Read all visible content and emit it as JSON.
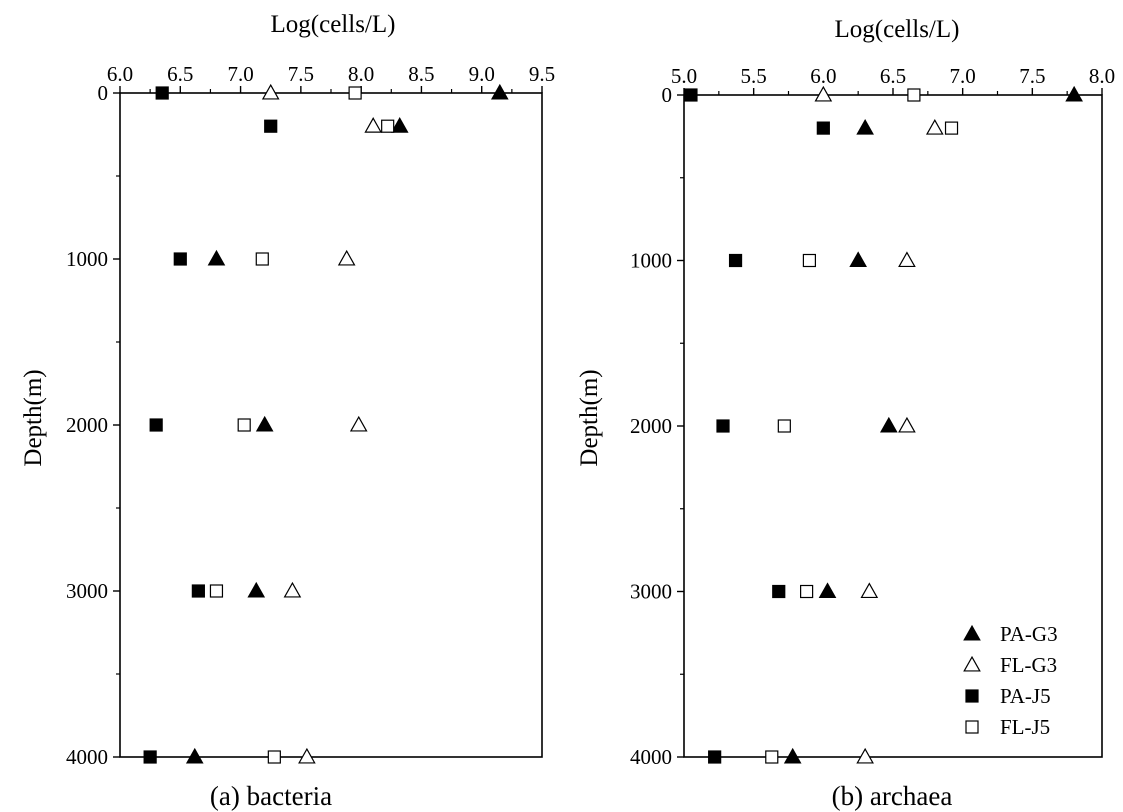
{
  "chart_data": [
    {
      "type": "scatter",
      "caption": "(a) bacteria",
      "xlabel": "Log(cells/L)",
      "ylabel": "Depth(m)",
      "xlim": [
        6.0,
        9.5
      ],
      "ylim": [
        0,
        4000
      ],
      "xticks": [
        "6.0",
        "6.5",
        "7.0",
        "7.5",
        "8.0",
        "8.5",
        "9.0",
        "9.5"
      ],
      "yticks": [
        "0",
        "1000",
        "2000",
        "3000",
        "4000"
      ],
      "x_axis_position": "top",
      "y_axis_inverted": true,
      "series": [
        {
          "name": "PA-G3",
          "marker": "triangle-filled",
          "points": [
            [
              9.15,
              0
            ],
            [
              8.32,
              200
            ],
            [
              6.8,
              1000
            ],
            [
              7.2,
              2000
            ],
            [
              7.13,
              3000
            ],
            [
              6.62,
              4000
            ]
          ]
        },
        {
          "name": "FL-G3",
          "marker": "triangle-open",
          "points": [
            [
              7.25,
              0
            ],
            [
              8.1,
              200
            ],
            [
              7.88,
              1000
            ],
            [
              7.98,
              2000
            ],
            [
              7.43,
              3000
            ],
            [
              7.55,
              4000
            ]
          ]
        },
        {
          "name": "PA-J5",
          "marker": "square-filled",
          "points": [
            [
              6.35,
              0
            ],
            [
              7.25,
              200
            ],
            [
              6.5,
              1000
            ],
            [
              6.3,
              2000
            ],
            [
              6.65,
              3000
            ],
            [
              6.25,
              4000
            ]
          ]
        },
        {
          "name": "FL-J5",
          "marker": "square-open",
          "points": [
            [
              7.95,
              0
            ],
            [
              8.22,
              200
            ],
            [
              7.18,
              1000
            ],
            [
              7.03,
              2000
            ],
            [
              6.8,
              3000
            ],
            [
              7.28,
              4000
            ]
          ]
        }
      ]
    },
    {
      "type": "scatter",
      "caption": "(b) archaea",
      "xlabel": "Log(cells/L)",
      "ylabel": "Depth(m)",
      "xlim": [
        5.0,
        8.0
      ],
      "ylim": [
        0,
        4000
      ],
      "xticks": [
        "5.0",
        "5.5",
        "6.0",
        "6.5",
        "7.0",
        "7.5",
        "8.0"
      ],
      "yticks": [
        "0",
        "1000",
        "2000",
        "3000",
        "4000"
      ],
      "x_axis_position": "top",
      "y_axis_inverted": true,
      "legend_position": "bottom-right",
      "series": [
        {
          "name": "PA-G3",
          "marker": "triangle-filled",
          "points": [
            [
              7.8,
              0
            ],
            [
              6.3,
              200
            ],
            [
              6.25,
              1000
            ],
            [
              6.47,
              2000
            ],
            [
              6.03,
              3000
            ],
            [
              5.78,
              4000
            ]
          ]
        },
        {
          "name": "FL-G3",
          "marker": "triangle-open",
          "points": [
            [
              6.0,
              0
            ],
            [
              6.8,
              200
            ],
            [
              6.6,
              1000
            ],
            [
              6.6,
              2000
            ],
            [
              6.33,
              3000
            ],
            [
              6.3,
              4000
            ]
          ]
        },
        {
          "name": "PA-J5",
          "marker": "square-filled",
          "points": [
            [
              5.05,
              0
            ],
            [
              6.0,
              200
            ],
            [
              5.37,
              1000
            ],
            [
              5.28,
              2000
            ],
            [
              5.68,
              3000
            ],
            [
              5.22,
              4000
            ]
          ]
        },
        {
          "name": "FL-J5",
          "marker": "square-open",
          "points": [
            [
              6.65,
              0
            ],
            [
              6.92,
              200
            ],
            [
              5.9,
              1000
            ],
            [
              5.72,
              2000
            ],
            [
              5.88,
              3000
            ],
            [
              5.63,
              4000
            ]
          ]
        }
      ]
    }
  ]
}
